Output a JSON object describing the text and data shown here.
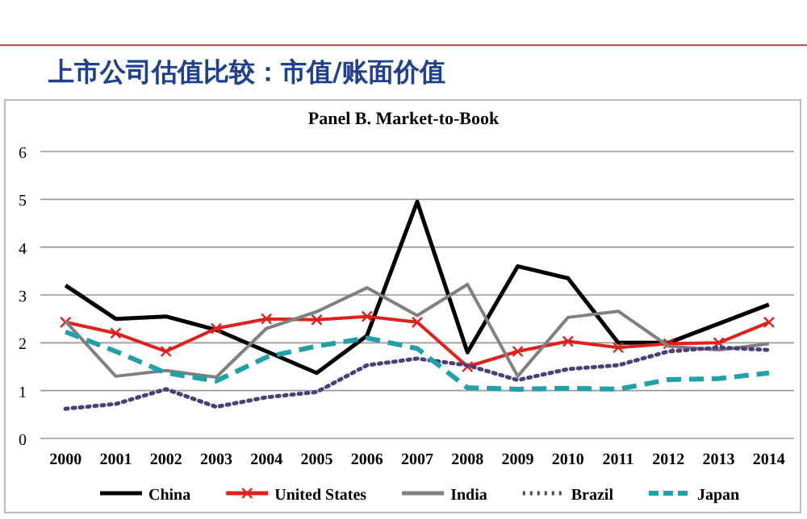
{
  "chart_data": {
    "type": "line",
    "title": "上市公司估值比较：市值/账面价值",
    "subtitle": "Panel B. Market-to-Book",
    "categories": [
      "2000",
      "2001",
      "2002",
      "2003",
      "2004",
      "2005",
      "2006",
      "2007",
      "2008",
      "2009",
      "2010",
      "2011",
      "2012",
      "2013",
      "2014"
    ],
    "series": [
      {
        "name": "China",
        "color": "#000000",
        "line_style": "solid",
        "marker": "none",
        "values": [
          3.2,
          2.5,
          2.55,
          2.27,
          1.82,
          1.37,
          2.15,
          4.95,
          1.8,
          3.6,
          3.35,
          2.0,
          2.0,
          2.4,
          2.8
        ]
      },
      {
        "name": "United States",
        "color": "#e0201b",
        "line_style": "solid",
        "marker": "cross",
        "values": [
          2.43,
          2.2,
          1.82,
          2.3,
          2.5,
          2.48,
          2.55,
          2.43,
          1.5,
          1.82,
          2.03,
          1.9,
          1.98,
          2.0,
          2.43
        ]
      },
      {
        "name": "India",
        "color": "#808080",
        "line_style": "solid",
        "marker": "none",
        "values": [
          2.45,
          1.3,
          1.42,
          1.28,
          2.3,
          2.65,
          3.15,
          2.57,
          3.22,
          1.3,
          2.53,
          2.66,
          1.93,
          1.85,
          1.98
        ]
      },
      {
        "name": "Brazil",
        "color": "#4b3f7a",
        "line_style": "dotted",
        "marker": "none",
        "values": [
          0.62,
          0.72,
          1.03,
          0.66,
          0.86,
          0.97,
          1.53,
          1.67,
          1.53,
          1.22,
          1.45,
          1.53,
          1.82,
          1.9,
          1.85
        ]
      },
      {
        "name": "Japan",
        "color": "#20a0a8",
        "line_style": "dashed",
        "marker": "none",
        "values": [
          2.23,
          1.82,
          1.37,
          1.2,
          1.7,
          1.93,
          2.1,
          1.88,
          1.06,
          1.03,
          1.05,
          1.03,
          1.23,
          1.25,
          1.37
        ]
      }
    ],
    "ylim": [
      0,
      6
    ],
    "yticks": [
      0,
      1,
      2,
      3,
      4,
      5,
      6
    ],
    "grid": "y",
    "legend": "bottom"
  }
}
